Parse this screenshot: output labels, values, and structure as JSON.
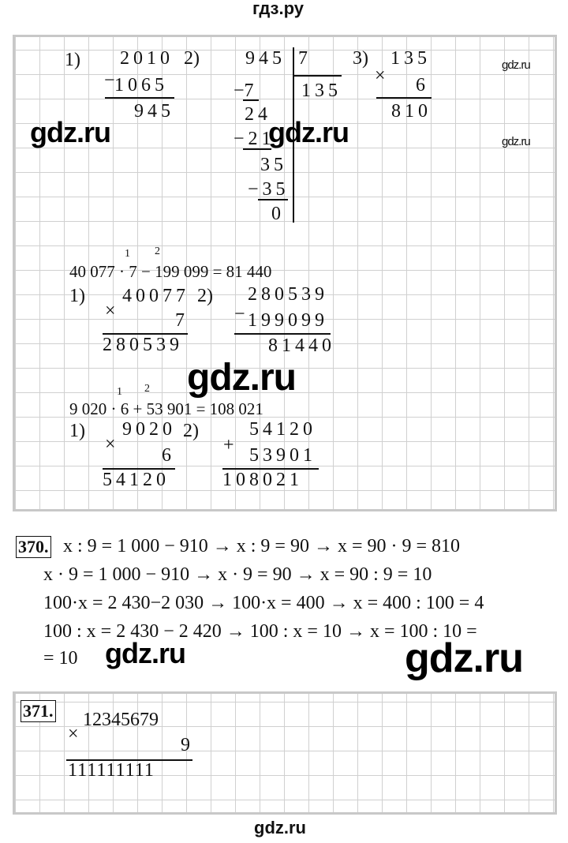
{
  "header": {
    "title": "гдз.ру"
  },
  "footer": {
    "watermark": "gdz.ru"
  },
  "watermarks": {
    "small": "gdz.ru",
    "large": "gdz.ru"
  },
  "block1": {
    "step1": {
      "label": "1)",
      "minuend": "2010",
      "minus": "−",
      "subtrahend": "1065",
      "result": "945"
    },
    "step2": {
      "label": "2)",
      "dividend": "945",
      "divisor": "7",
      "quotient": "135",
      "rows": [
        "−7",
        "24",
        "−21",
        "35",
        "−35",
        "0"
      ]
    },
    "step3": {
      "label": "3)",
      "multiplicand": "135",
      "times": "×",
      "multiplier": "6",
      "result": "810"
    }
  },
  "block2": {
    "expression": "40 077 · 7 − 199 099 = 81 440",
    "order": [
      "1",
      "2"
    ],
    "step1": {
      "label": "1)",
      "multiplicand": "40077",
      "times": "×",
      "multiplier": "7",
      "result": "280539"
    },
    "step2": {
      "label": "2)",
      "minuend": "280539",
      "minus": "−",
      "subtrahend": "199099",
      "result": "81440"
    }
  },
  "block3": {
    "expression": "9 020 · 6 + 53 901 = 108 021",
    "order": [
      "1",
      "2"
    ],
    "step1": {
      "label": "1)",
      "multiplicand": "9020",
      "times": "×",
      "multiplier": "6",
      "result": "54120"
    },
    "step2": {
      "label": "2)",
      "addend1": "54120",
      "plus": "+",
      "addend2": "53901",
      "result": "108021"
    }
  },
  "task370": {
    "number": "370.",
    "lines": [
      "x : 9 = 1 000 − 910 → x : 9 = 90 → x = 90 · 9 = 810",
      "x · 9 = 1 000 − 910 → x · 9 = 90 → x = 90 : 9 = 10",
      "100·x = 2 430−2 030 → 100·x = 400 → x = 400 : 100 = 4",
      "100 : x = 2 430 − 2 420 → 100 : x = 10 → x = 100 : 10 =",
      "= 10"
    ]
  },
  "task371": {
    "number": "371.",
    "multiplicand": "12345679",
    "times": "×",
    "multiplier": "9",
    "result": "111111111"
  }
}
